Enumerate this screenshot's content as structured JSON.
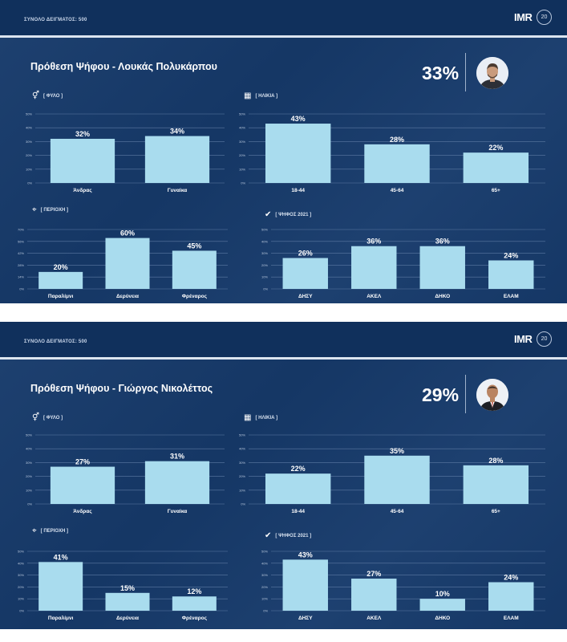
{
  "colors": {
    "panel_bg": "#163a6b",
    "bar_fill": "#a9dcee",
    "text": "#ffffff",
    "grid": "#5d7aa3"
  },
  "panels": [
    {
      "sample_label": "ΣΥΝΟΛΟ ΔΕΙΓΜΑΤΟΣ: 500",
      "logo_text": "IMR",
      "logo_badge": "20",
      "headline": "Πρόθεση Ψήφου - Λουκάς Πολυκάρπου",
      "overall_pct": "33%",
      "avatar_icon": "candidate-portrait",
      "sections": {
        "gender": {
          "label": "ΦΥΛΟ",
          "icon": "gender-icon"
        },
        "age": {
          "label": "ΗΛΙΚΙΑ",
          "icon": "calendar-icon"
        },
        "region": {
          "label": "ΠΕΡΙΟΧΗ",
          "icon": "location-pin-icon"
        },
        "vote": {
          "label": "ΨΗΦΟΣ 2021",
          "icon": "check-circle-icon"
        }
      }
    },
    {
      "sample_label": "ΣΥΝΟΛΟ ΔΕΙΓΜΑΤΟΣ: 500",
      "logo_text": "IMR",
      "logo_badge": "20",
      "headline": "Πρόθεση Ψήφου - Γιώργος Νικολέττος",
      "overall_pct": "29%",
      "avatar_icon": "candidate-portrait",
      "sections": {
        "gender": {
          "label": "ΦΥΛΟ",
          "icon": "gender-icon"
        },
        "age": {
          "label": "ΗΛΙΚΙΑ",
          "icon": "calendar-icon"
        },
        "region": {
          "label": "ΠΕΡΙΟΧΗ",
          "icon": "location-pin-icon"
        },
        "vote": {
          "label": "ΨΗΦΟΣ 2021",
          "icon": "check-circle-icon"
        }
      }
    }
  ],
  "chart_data": [
    {
      "id": "p0-gender",
      "type": "bar",
      "categories": [
        "Άνδρας",
        "Γυναίκα"
      ],
      "values": [
        32,
        34
      ],
      "value_labels": [
        "32%",
        "34%"
      ],
      "ylim": [
        0,
        50
      ],
      "y_ticks": [
        "0%",
        "10%",
        "20%",
        "30%",
        "40%",
        "50%"
      ]
    },
    {
      "id": "p0-age",
      "type": "bar",
      "categories": [
        "18-44",
        "45-64",
        "65+"
      ],
      "values": [
        43,
        28,
        22
      ],
      "value_labels": [
        "43%",
        "28%",
        "22%"
      ],
      "ylim": [
        0,
        50
      ],
      "y_ticks": [
        "0%",
        "10%",
        "20%",
        "30%",
        "40%",
        "50%"
      ]
    },
    {
      "id": "p0-region",
      "type": "bar",
      "categories": [
        "Παραλίμνι",
        "Δερύνεια",
        "Φρέναρος"
      ],
      "values": [
        20,
        60,
        45
      ],
      "value_labels": [
        "20%",
        "60%",
        "45%"
      ],
      "ylim": [
        0,
        70
      ],
      "y_ticks": [
        "0%",
        "14%",
        "28%",
        "42%",
        "56%",
        "70%"
      ]
    },
    {
      "id": "p0-vote",
      "type": "bar",
      "categories": [
        "ΔΗΣΥ",
        "ΑΚΕΛ",
        "ΔΗΚΟ",
        "ΕΛΑΜ"
      ],
      "values": [
        26,
        36,
        36,
        24
      ],
      "value_labels": [
        "26%",
        "36%",
        "36%",
        "24%"
      ],
      "ylim": [
        0,
        50
      ],
      "y_ticks": [
        "0%",
        "10%",
        "20%",
        "30%",
        "40%",
        "50%"
      ]
    },
    {
      "id": "p1-gender",
      "type": "bar",
      "categories": [
        "Άνδρας",
        "Γυναίκα"
      ],
      "values": [
        27,
        31
      ],
      "value_labels": [
        "27%",
        "31%"
      ],
      "ylim": [
        0,
        50
      ],
      "y_ticks": [
        "0%",
        "10%",
        "20%",
        "30%",
        "40%",
        "50%"
      ]
    },
    {
      "id": "p1-age",
      "type": "bar",
      "categories": [
        "18-44",
        "45-64",
        "65+"
      ],
      "values": [
        22,
        35,
        28
      ],
      "value_labels": [
        "22%",
        "35%",
        "28%"
      ],
      "ylim": [
        0,
        50
      ],
      "y_ticks": [
        "0%",
        "10%",
        "20%",
        "30%",
        "40%",
        "50%"
      ]
    },
    {
      "id": "p1-region",
      "type": "bar",
      "categories": [
        "Παραλίμνι",
        "Δερύνεια",
        "Φρέναρος"
      ],
      "values": [
        41,
        15,
        12
      ],
      "value_labels": [
        "41%",
        "15%",
        "12%"
      ],
      "ylim": [
        0,
        50
      ],
      "y_ticks": [
        "0%",
        "10%",
        "20%",
        "30%",
        "40%",
        "50%"
      ]
    },
    {
      "id": "p1-vote",
      "type": "bar",
      "categories": [
        "ΔΗΣΥ",
        "ΑΚΕΛ",
        "ΔΗΚΟ",
        "ΕΛΑΜ"
      ],
      "values": [
        43,
        27,
        10,
        24
      ],
      "value_labels": [
        "43%",
        "27%",
        "10%",
        "24%"
      ],
      "ylim": [
        0,
        50
      ],
      "y_ticks": [
        "0%",
        "10%",
        "20%",
        "30%",
        "40%",
        "50%"
      ]
    }
  ]
}
